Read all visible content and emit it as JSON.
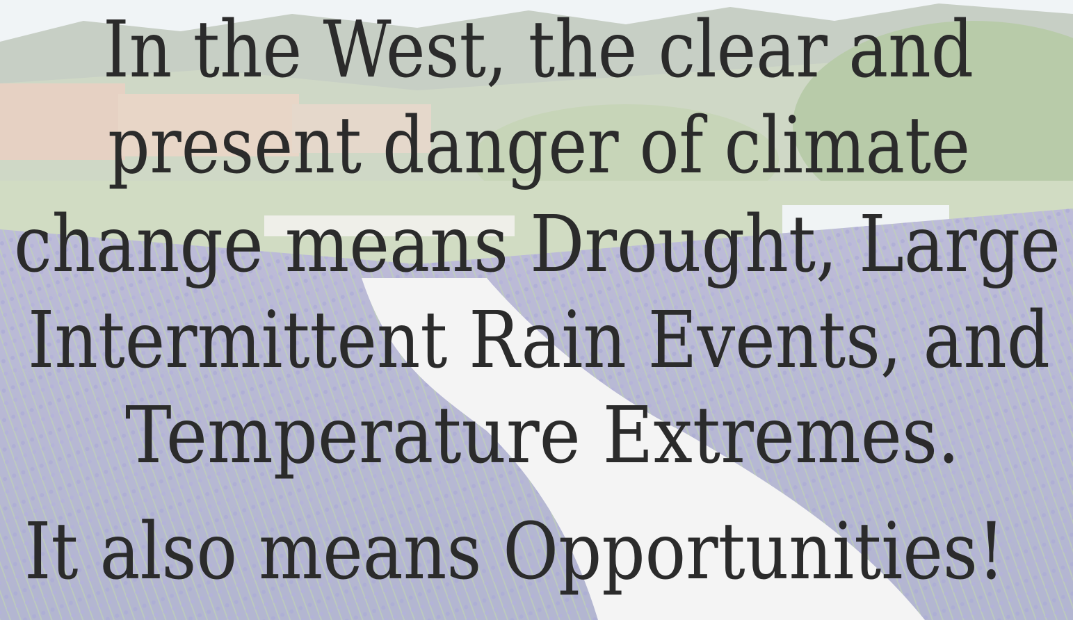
{
  "slide": {
    "lines": [
      "In the West, the clear and",
      "present danger of climate",
      "change means Drought, Large",
      "Intermittent Rain Events, and",
      "Temperature Extremes.",
      "It also means Opportunities!"
    ]
  }
}
